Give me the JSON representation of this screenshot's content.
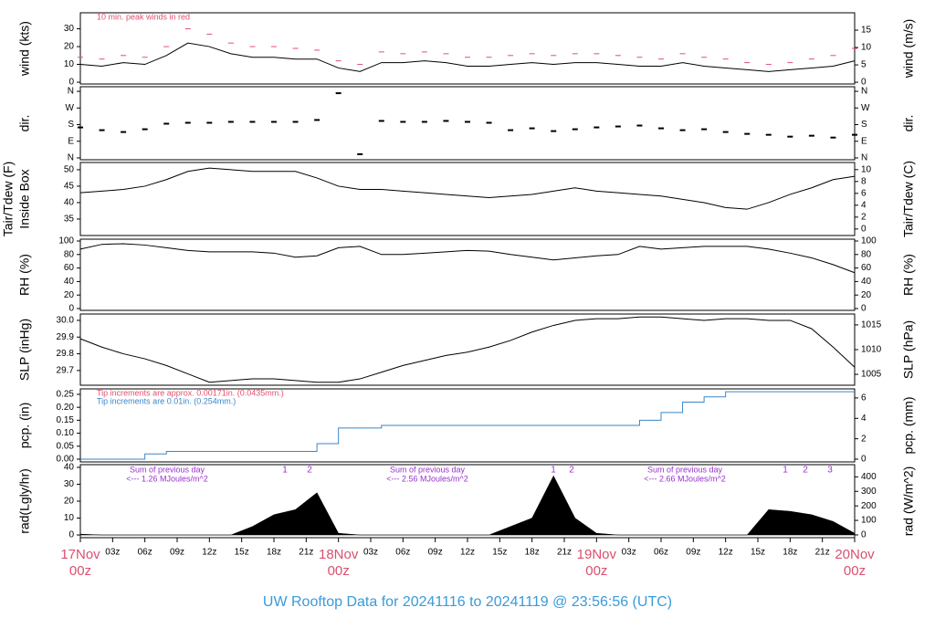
{
  "title": "UW Rooftop Data for 20241116  to  20241119 @ 23:56:56  (UTC)",
  "chart_data": [
    {
      "type": "line",
      "ylabel": "wind (kts)",
      "y2label": "wind (m/s)",
      "xlim": [
        0,
        72
      ],
      "ylim": [
        -1,
        39
      ],
      "yticks": [
        0,
        10,
        20,
        30
      ],
      "y2lim": [
        -0.5,
        20
      ],
      "y2ticks": [
        0,
        5,
        10,
        15
      ],
      "annotations": [
        {
          "text": "10 min. peak winds in red",
          "color": "#e0506e"
        }
      ],
      "x": [
        0,
        2,
        4,
        6,
        8,
        10,
        12,
        14,
        16,
        18,
        20,
        22,
        24,
        26,
        28,
        30,
        32,
        34,
        36,
        38,
        40,
        42,
        44,
        46,
        48,
        50,
        52,
        54,
        56,
        58,
        60,
        62,
        64,
        66,
        68,
        70,
        72
      ],
      "series": [
        {
          "color": "#000000",
          "values": [
            10,
            9,
            11,
            10,
            15,
            22,
            20,
            16,
            14,
            14,
            13,
            13,
            8,
            6,
            11,
            11,
            12,
            11,
            9,
            9,
            10,
            11,
            10,
            11,
            11,
            10,
            9,
            9,
            11,
            9,
            8,
            7,
            6,
            7,
            8,
            9,
            12
          ]
        },
        {
          "color": "#e0506e",
          "style": "dash",
          "values": [
            14,
            13,
            15,
            14,
            20,
            30,
            27,
            22,
            20,
            20,
            19,
            18,
            12,
            10,
            17,
            16,
            17,
            16,
            14,
            14,
            15,
            16,
            15,
            16,
            16,
            15,
            14,
            13,
            16,
            14,
            13,
            11,
            10,
            11,
            13,
            15,
            19
          ]
        }
      ]
    },
    {
      "type": "scatter",
      "ylabel": "dir.",
      "y2label": "dir.",
      "xlim": [
        0,
        72
      ],
      "ylim": [
        -10,
        385
      ],
      "yticks": [
        {
          "value": 0,
          "label": "N"
        },
        {
          "value": 90,
          "label": "E"
        },
        {
          "value": 180,
          "label": "S"
        },
        {
          "value": 270,
          "label": "W"
        },
        {
          "value": 360,
          "label": "N"
        }
      ],
      "y2lim": [
        -10,
        385
      ],
      "y2ticks": [
        {
          "value": 0,
          "label": "N"
        },
        {
          "value": 90,
          "label": "E"
        },
        {
          "value": 180,
          "label": "S"
        },
        {
          "value": 270,
          "label": "W"
        },
        {
          "value": 360,
          "label": "N"
        }
      ],
      "x": [
        0,
        2,
        4,
        6,
        8,
        10,
        12,
        14,
        16,
        18,
        20,
        22,
        24,
        26,
        28,
        30,
        32,
        34,
        36,
        38,
        40,
        42,
        44,
        46,
        48,
        50,
        52,
        54,
        56,
        58,
        60,
        62,
        64,
        66,
        68,
        70,
        72
      ],
      "series": [
        {
          "color": "#000000",
          "values": [
            165,
            150,
            140,
            155,
            185,
            190,
            190,
            195,
            195,
            195,
            195,
            205,
            350,
            20,
            200,
            195,
            195,
            200,
            195,
            190,
            150,
            160,
            145,
            155,
            165,
            170,
            175,
            160,
            150,
            155,
            140,
            130,
            125,
            115,
            120,
            110,
            125
          ]
        }
      ]
    },
    {
      "type": "line",
      "ylabel": [
        "Tair/Tdew (F)",
        "Inside Box"
      ],
      "y2label": "Tair/Tdew (C)",
      "xlim": [
        0,
        72
      ],
      "ylim": [
        30,
        52.2
      ],
      "yticks": [
        35,
        40,
        45,
        50
      ],
      "y2lim": [
        -1.1,
        11.2
      ],
      "y2ticks": [
        0,
        2,
        4,
        6,
        8,
        10
      ],
      "x": [
        0,
        2,
        4,
        6,
        8,
        10,
        12,
        14,
        16,
        18,
        20,
        22,
        24,
        26,
        28,
        30,
        32,
        34,
        36,
        38,
        40,
        42,
        44,
        46,
        48,
        50,
        52,
        54,
        56,
        58,
        60,
        62,
        64,
        66,
        68,
        70,
        72
      ],
      "series": [
        {
          "color": "#000000",
          "values": [
            43,
            43.5,
            44,
            45,
            47,
            49.5,
            50.5,
            50,
            49.5,
            49.5,
            49.5,
            47.5,
            45,
            44,
            44,
            43.5,
            43,
            42.5,
            42,
            41.5,
            42,
            42.5,
            43.5,
            44.5,
            43.5,
            43,
            42.5,
            42,
            41,
            40,
            38.5,
            38,
            40,
            42.5,
            44.5,
            47,
            48
          ]
        }
      ]
    },
    {
      "type": "line",
      "ylabel": "RH (%)",
      "y2label": "RH (%)",
      "xlim": [
        0,
        72
      ],
      "ylim": [
        -2.7,
        102.7
      ],
      "yticks": [
        0,
        20,
        40,
        60,
        80,
        100
      ],
      "y2lim": [
        -2.7,
        102.7
      ],
      "y2ticks": [
        0,
        20,
        40,
        60,
        80,
        100
      ],
      "x": [
        0,
        2,
        4,
        6,
        8,
        10,
        12,
        14,
        16,
        18,
        20,
        22,
        24,
        26,
        28,
        30,
        32,
        34,
        36,
        38,
        40,
        42,
        44,
        46,
        48,
        50,
        52,
        54,
        56,
        58,
        60,
        62,
        64,
        66,
        68,
        70,
        72
      ],
      "series": [
        {
          "color": "#000000",
          "values": [
            88,
            95,
            96,
            94,
            90,
            86,
            84,
            84,
            84,
            82,
            76,
            78,
            90,
            92,
            80,
            80,
            82,
            84,
            86,
            85,
            80,
            76,
            72,
            75,
            78,
            80,
            92,
            88,
            90,
            92,
            92,
            92,
            88,
            82,
            75,
            65,
            53
          ]
        }
      ]
    },
    {
      "type": "line",
      "ylabel": "SLP (inHg)",
      "y2label": "SLP (hPa)",
      "xlim": [
        0,
        72
      ],
      "ylim": [
        29.612,
        30.038
      ],
      "yticks": [
        29.7,
        29.8,
        29.9,
        {
          "value": 30,
          "label": "30.0"
        }
      ],
      "y2lim": [
        1002.8,
        1017.2
      ],
      "y2ticks": [
        1005,
        1010,
        1015
      ],
      "x": [
        0,
        2,
        4,
        6,
        8,
        10,
        12,
        14,
        16,
        18,
        20,
        22,
        24,
        26,
        28,
        30,
        32,
        34,
        36,
        38,
        40,
        42,
        44,
        46,
        48,
        50,
        52,
        54,
        56,
        58,
        60,
        62,
        64,
        66,
        68,
        70,
        72
      ],
      "series": [
        {
          "color": "#000000",
          "values": [
            29.89,
            29.84,
            29.8,
            29.77,
            29.73,
            29.68,
            29.63,
            29.64,
            29.65,
            29.65,
            29.64,
            29.63,
            29.63,
            29.65,
            29.69,
            29.73,
            29.76,
            29.79,
            29.81,
            29.84,
            29.88,
            29.93,
            29.97,
            30,
            30.01,
            30.01,
            30.02,
            30.02,
            30.01,
            30,
            30.01,
            30.01,
            30,
            30,
            29.95,
            29.84,
            29.72
          ]
        }
      ]
    },
    {
      "type": "step",
      "ylabel": "pcp. (in)",
      "y2label": "pcp. (mm)",
      "xlim": [
        0,
        72
      ],
      "ylim": [
        -0.0106,
        0.271
      ],
      "yticks": [
        {
          "value": 0,
          "label": "0.00"
        },
        0.05,
        {
          "value": 0.1,
          "label": "0.10"
        },
        0.15,
        {
          "value": 0.2,
          "label": "0.20"
        },
        0.25
      ],
      "y2lim": [
        -0.27,
        6.89
      ],
      "y2ticks": [
        0,
        2,
        4,
        6
      ],
      "annotations": [
        {
          "text": "Tip increments are approx. 0.00171in. (0.0435mm.)",
          "color": "#e0506e"
        },
        {
          "text": "Tip increments are 0.01in. (0.254mm.)",
          "color": "#3a86c8"
        }
      ],
      "x": [
        0,
        2,
        4,
        6,
        8,
        10,
        12,
        14,
        16,
        18,
        20,
        22,
        24,
        26,
        28,
        30,
        32,
        34,
        36,
        38,
        40,
        42,
        44,
        46,
        48,
        50,
        52,
        54,
        56,
        58,
        60,
        62,
        64,
        66,
        68,
        70,
        72
      ],
      "series": [
        {
          "color": "#3a86c8",
          "values": [
            0,
            0,
            0,
            0.02,
            0.03,
            0.03,
            0.03,
            0.03,
            0.03,
            0.03,
            0.03,
            0.06,
            0.12,
            0.12,
            0.13,
            0.13,
            0.13,
            0.13,
            0.13,
            0.13,
            0.13,
            0.13,
            0.13,
            0.13,
            0.13,
            0.13,
            0.15,
            0.18,
            0.22,
            0.24,
            0.26,
            0.26,
            0.26,
            0.26,
            0.26,
            0.26,
            0.26
          ]
        }
      ]
    },
    {
      "type": "area",
      "ylabel": "rad(Lgly/hr)",
      "y2label": "rad (W/m^2)",
      "xlim": [
        0,
        72
      ],
      "ylim": [
        -1.6,
        41.6
      ],
      "yticks": [
        0,
        10,
        20,
        30,
        40
      ],
      "y2lim": [
        -19,
        484
      ],
      "y2ticks": [
        0,
        100,
        200,
        300,
        400
      ],
      "xticks": [
        {
          "value": 0,
          "label": "00z",
          "date": "17Nov"
        },
        {
          "value": 3,
          "label": "03z"
        },
        {
          "value": 6,
          "label": "06z"
        },
        {
          "value": 9,
          "label": "09z"
        },
        {
          "value": 12,
          "label": "12z"
        },
        {
          "value": 15,
          "label": "15z"
        },
        {
          "value": 18,
          "label": "18z"
        },
        {
          "value": 21,
          "label": "21z"
        },
        {
          "value": 24,
          "label": "00z",
          "date": "18Nov"
        },
        {
          "value": 27,
          "label": "03z"
        },
        {
          "value": 30,
          "label": "06z"
        },
        {
          "value": 33,
          "label": "09z"
        },
        {
          "value": 36,
          "label": "12z"
        },
        {
          "value": 39,
          "label": "15z"
        },
        {
          "value": 42,
          "label": "18z"
        },
        {
          "value": 45,
          "label": "21z"
        },
        {
          "value": 48,
          "label": "00z",
          "date": "19Nov"
        },
        {
          "value": 51,
          "label": "03z"
        },
        {
          "value": 54,
          "label": "06z"
        },
        {
          "value": 57,
          "label": "09z"
        },
        {
          "value": 60,
          "label": "12z"
        },
        {
          "value": 63,
          "label": "15z"
        },
        {
          "value": 66,
          "label": "18z"
        },
        {
          "value": 69,
          "label": "21z"
        },
        {
          "value": 72,
          "label": "00z",
          "date": "20Nov"
        }
      ],
      "daily_sums": [
        {
          "heading": "Sum of previous day",
          "text": "<--- 1.26 MJoules/m^2"
        },
        {
          "heading": "Sum of previous day",
          "text": "<--- 2.56 MJoules/m^2"
        },
        {
          "heading": "Sum of previous day",
          "text": "<--- 2.66 MJoules/m^2"
        }
      ],
      "markers": [
        1,
        2,
        1,
        2,
        1,
        2,
        3
      ],
      "x": [
        0,
        2,
        4,
        6,
        8,
        10,
        12,
        14,
        16,
        18,
        20,
        22,
        24,
        26,
        28,
        30,
        32,
        34,
        36,
        38,
        40,
        42,
        44,
        46,
        48,
        50,
        52,
        54,
        56,
        58,
        60,
        62,
        64,
        66,
        68,
        70,
        72
      ],
      "series": [
        {
          "color": "#000000",
          "values": [
            0.5,
            0,
            0,
            0,
            0,
            0,
            0,
            0,
            5,
            12,
            15,
            25,
            1,
            0,
            0,
            0,
            0,
            0,
            0,
            0,
            5,
            10,
            35,
            10,
            1,
            0,
            0,
            0,
            0,
            0,
            0,
            0,
            15,
            14,
            12,
            8,
            1
          ]
        }
      ]
    }
  ]
}
